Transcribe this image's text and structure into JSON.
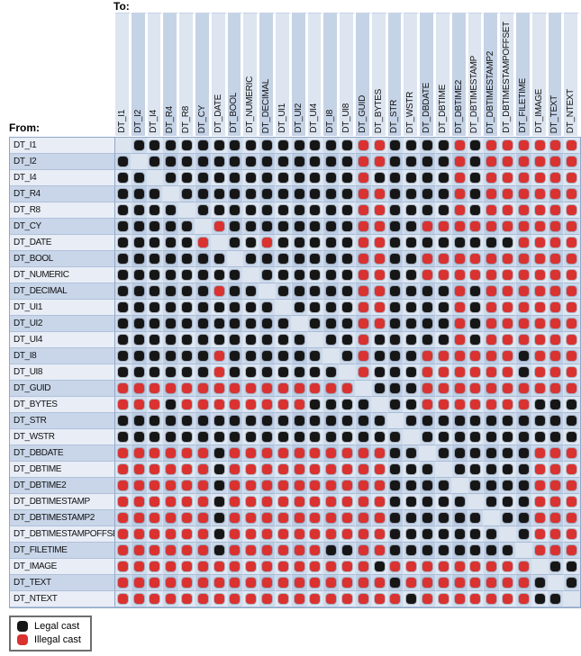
{
  "legend": {
    "items": [
      {
        "label": "Legal cast",
        "key": "B",
        "color": "#161616"
      },
      {
        "label": "Illegal cast",
        "key": "R",
        "color": "#d93230"
      }
    ]
  },
  "chart_data": {
    "type": "heatmap",
    "title": "",
    "x_axis_label": "To:",
    "y_axis_label": "From:",
    "legend_position": "bottom-left",
    "cell_encoding": {
      "B": "legal cast (black dot)",
      "R": "illegal cast (red dot)",
      ".": "same type (empty cell)"
    },
    "colors": {
      "legal": "#161616",
      "illegal": "#d93230"
    },
    "types": [
      "DT_I1",
      "DT_I2",
      "DT_I4",
      "DT_R4",
      "DT_R8",
      "DT_CY",
      "DT_DATE",
      "DT_BOOL",
      "DT_NUMERIC",
      "DT_DECIMAL",
      "DT_UI1",
      "DT_UI2",
      "DT_UI4",
      "DT_I8",
      "DT_UI8",
      "DT_GUID",
      "DT_BYTES",
      "DT_STR",
      "DT_WSTR",
      "DT_DBDATE",
      "DT_DBTIME",
      "DT_DBTIME2",
      "DT_DBTIMESTAMP",
      "DT_DBTIMESTAMP2",
      "DT_DBTIMESTAMPOFFSET",
      "DT_FILETIME",
      "DT_IMAGE",
      "DT_TEXT",
      "DT_NTEXT"
    ],
    "rows": [
      ".BBBBBBBBBBBBBBRRBBBBRBRRRRRR",
      "B.BBBBBBBBBBBBBRRBBBBRBRRRRRR",
      "BB.BBBBBBBBBBBBRBBBBBRBRRRRRR",
      "BBB.BBBBBBBBBBBRRBBBBRBRRRRRR",
      "BBBB.BBBBBBBBBBRRBBBBRBRRRRRR",
      "BBBBB.RBBBBBBBBRRBBRRRRRRRRRR",
      "BBBBBR.BBRBBBBBRRBBBBBBBBRRRR",
      "BBBBBBB.BBBBBBBRRBBRRRRRRRRRR",
      "BBBBBBBB.BBBBBBRRBBRRRRRRRRRR",
      "BBBBBBRBB.BBBBBRRBBBBRBRRRRRR",
      "BBBBBBBBBB.BBBBRRBBBBRBRRRRRR",
      "BBBBBBBBBBB.BBBRRBBBBRBRRRRRR",
      "BBBBBBBBBBBB.BBRBBBBBRBRRRRRR",
      "BBBBBBRBBBBBB.BRBBBRRRRRRBRRR",
      "BBBBBBRBBBBBBB.RBBBRRRRRRBRRR",
      "RRRRRRRRRRRRRRR.BBBRRRRRRRRRR",
      "RRRBRRRRRRRRBBBB.BBRRRRRRRBBB",
      "BBBBBBBBBBBBBBBBB.BBBBBBBBBBB",
      "BBBBBBBBBBBBBBBBBB.BBBBBBBBBB",
      "RRRRRRBRRRRRRRRRRBB.BBBBBBRRR",
      "RRRRRRBRRRRRRRRRRBBB.BBBBBRRR",
      "RRRRRRBRRRRRRRRRRBBBB.BBBBRRR",
      "RRRRRRBRRRRRRRRRRBBBBB.BBBRRR",
      "RRRRRRBRRRRRRRRRRBBBBBB.BBRRR",
      "RRRRRRBRRRRRRRRRRBBBBBBB.BRRR",
      "RRRRRRBRRRRRRBBRRBBBBBBBB.RRR",
      "RRRRRRRRRRRRRRRRBRRRRRRRRR.BB",
      "RRRRRRRRRRRRRRRRRBRRRRRRRRB.B",
      "RRRRRRRRRRRRRRRRRRBRRRRRRRBB."
    ]
  }
}
